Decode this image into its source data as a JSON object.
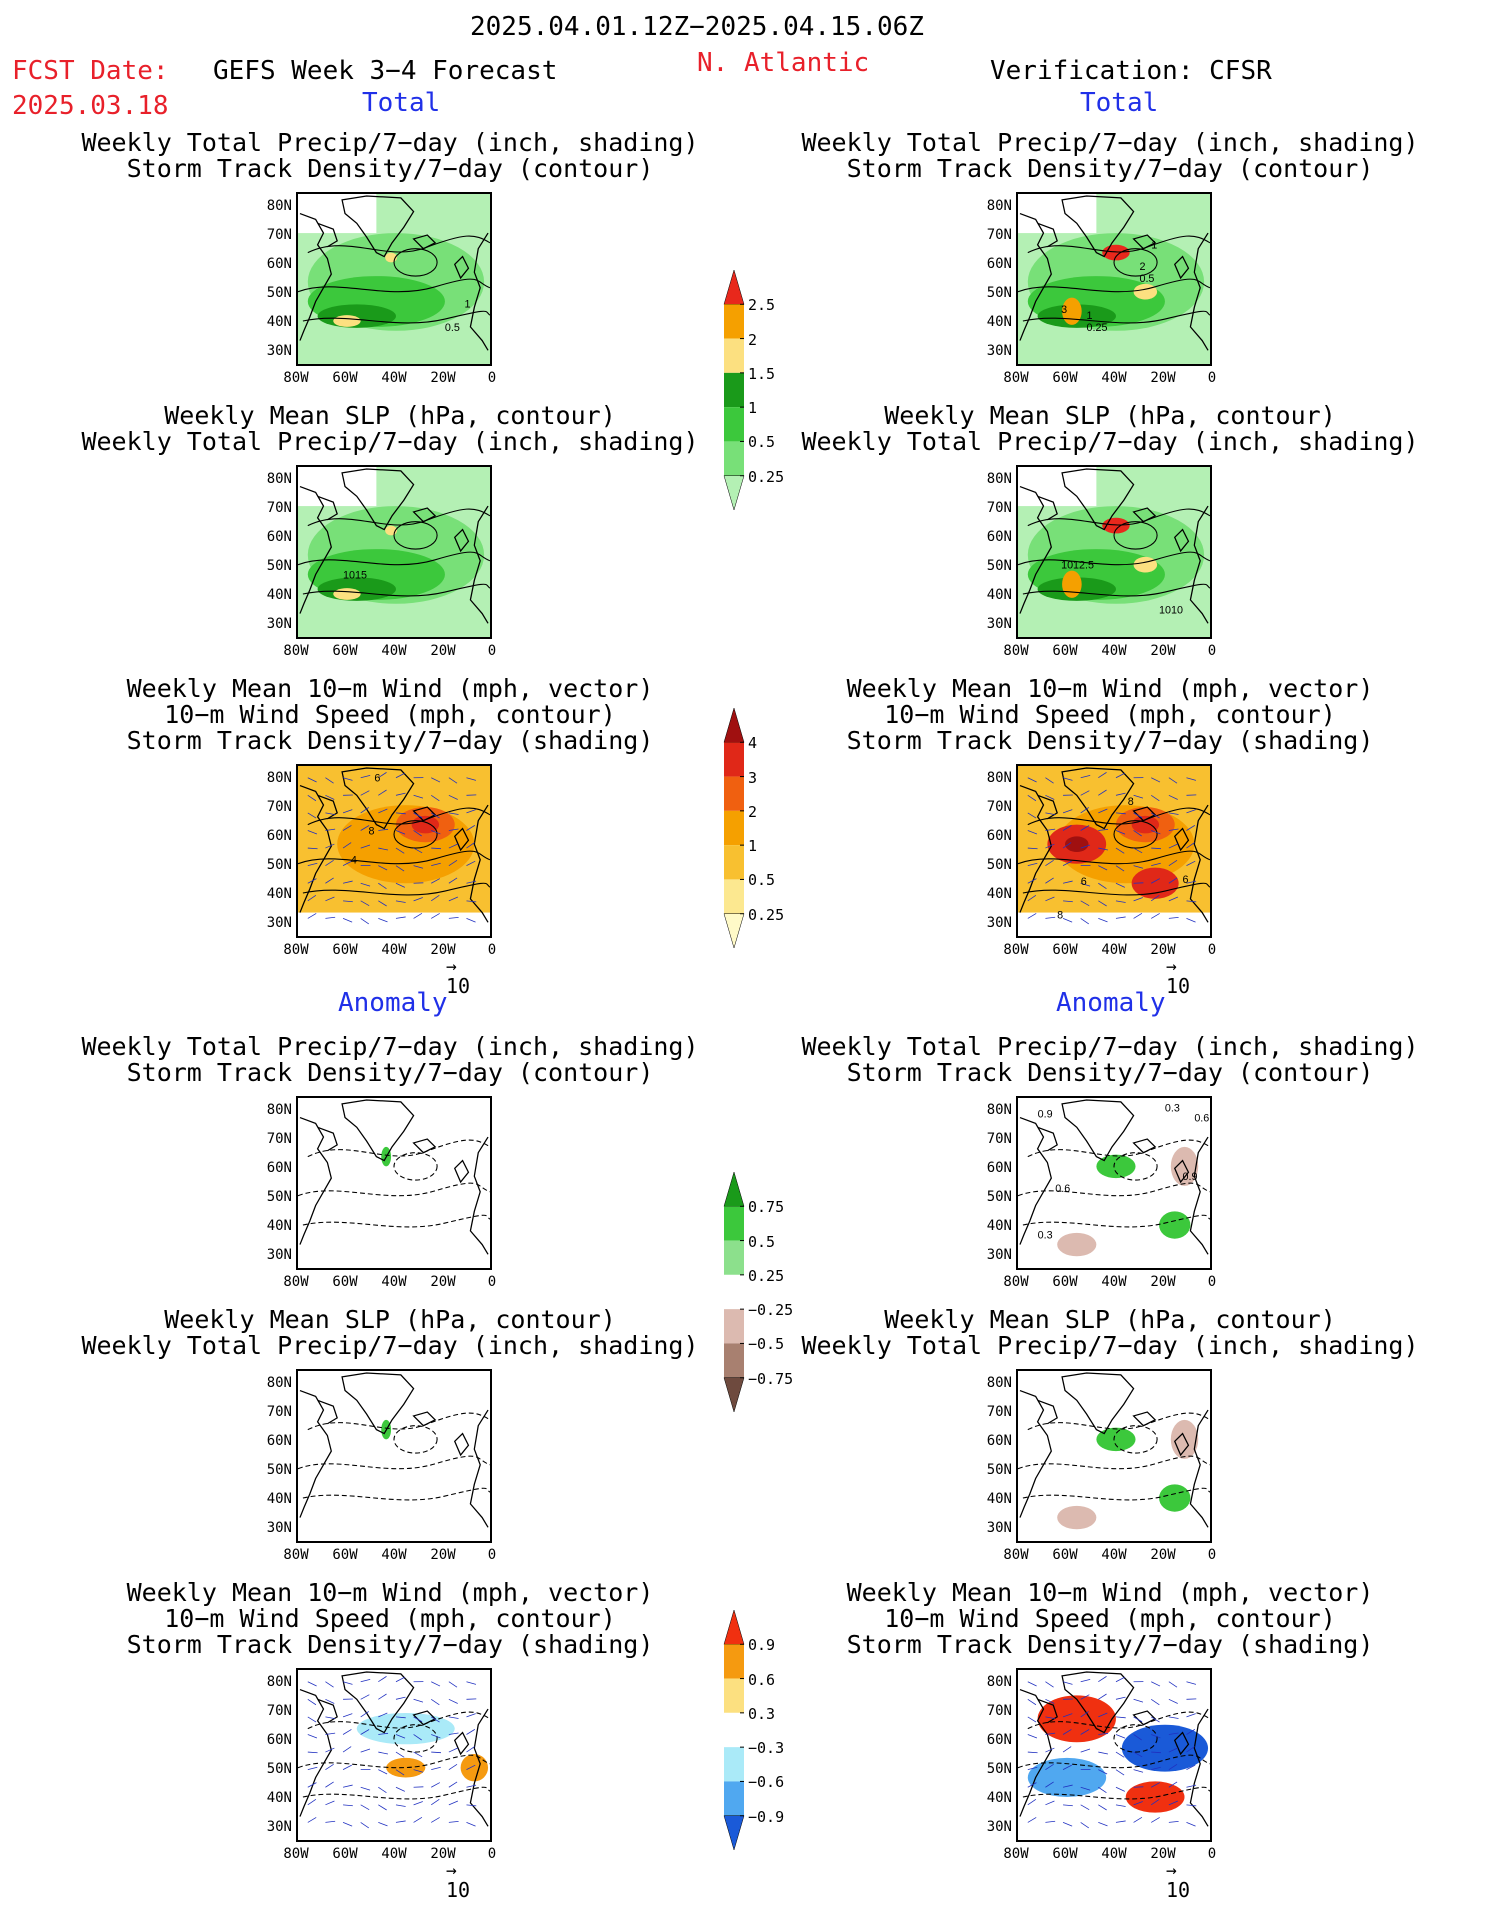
{
  "header": {
    "period": "2025.04.01.12Z−2025.04.15.06Z",
    "fcst_label": "FCST Date:",
    "fcst_date": "2025.03.18",
    "model": "GEFS Week 3−4 Forecast",
    "region": "N. Atlantic",
    "verification": "Verification: CFSR"
  },
  "sections": {
    "total": "Total",
    "anomaly": "Anomaly"
  },
  "titles": {
    "precip_std": [
      "Weekly Total Precip/7−day (inch, shading)",
      "Storm Track Density/7−day (contour)"
    ],
    "slp_precip": [
      "Weekly Mean SLP (hPa, contour)",
      "Weekly Total Precip/7−day (inch, shading)"
    ],
    "wind": [
      "Weekly Mean 10−m Wind (mph, vector)",
      "10−m Wind Speed (mph, contour)",
      "Storm Track Density/7−day (shading)"
    ]
  },
  "axes": {
    "lat_ticks": [
      "80N",
      "70N",
      "60N",
      "50N",
      "40N",
      "30N"
    ],
    "lon_ticks": [
      "80W",
      "60W",
      "40W",
      "20W",
      "0"
    ]
  },
  "vector_ref": "10",
  "contour_labels": {
    "fc_precip": [
      "1",
      "0.5"
    ],
    "ob_precip": [
      "1",
      "2",
      "0.5",
      "3",
      "1",
      "0.25"
    ],
    "fc_slp": [
      "1015"
    ],
    "ob_slp": [
      "1012.5",
      "1010"
    ],
    "fc_wind": [
      "6",
      "8",
      "4"
    ],
    "ob_wind": [
      "8",
      "6",
      "6",
      "8"
    ],
    "ob_anom_precip": [
      "0.3",
      "0.9",
      "0.6",
      "0.6",
      "0.9",
      "0.3"
    ]
  },
  "colorbars": {
    "precip_total": {
      "labels": [
        "2.5",
        "2",
        "1.5",
        "1",
        "0.5",
        "0.25"
      ],
      "colors": [
        "#e8281c",
        "#f5a000",
        "#fce080",
        "#1a9a1a",
        "#3cc83c",
        "#78e078",
        "#b4f0b4"
      ]
    },
    "storm_total": {
      "labels": [
        "4",
        "3",
        "2",
        "1",
        "0.5",
        "0.25"
      ],
      "colors": [
        "#a01010",
        "#e02818",
        "#f06010",
        "#f5a000",
        "#f8c030",
        "#fce890",
        "#fffac8"
      ]
    },
    "precip_anom": {
      "labels": [
        "0.75",
        "0.5",
        "0.25",
        "−0.25",
        "−0.5",
        "−0.75"
      ],
      "colors": [
        "#1a9a1a",
        "#3cc83c",
        "#8ce08c",
        "#ffffff",
        "#dcbab0",
        "#a88070",
        "#6e4a3e"
      ]
    },
    "storm_anom": {
      "labels": [
        "0.9",
        "0.6",
        "0.3",
        "−0.3",
        "−0.6",
        "−0.9"
      ],
      "colors": [
        "#f03010",
        "#f59a10",
        "#fce080",
        "#ffffff",
        "#aaeaf8",
        "#50a8f0",
        "#1a5ad8"
      ]
    }
  }
}
